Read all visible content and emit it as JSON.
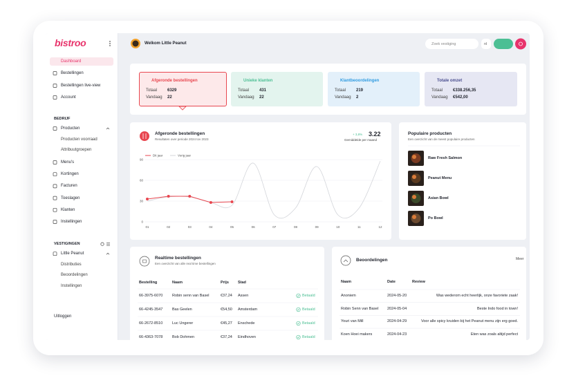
{
  "sidebar": {
    "logo": "bistroo",
    "menu": [
      "Dashboard",
      "Bestellingen",
      "Bestellingen live-view",
      "Account"
    ],
    "sections": [
      {
        "title": "BEDRIJF",
        "items": [
          {
            "label": "Producten",
            "children": [
              "Producten voorraad",
              "Attribuutgroepen"
            ]
          },
          {
            "label": "Menu's"
          },
          {
            "label": "Kortingen"
          },
          {
            "label": "Facturen"
          },
          {
            "label": "Toeslagen"
          },
          {
            "label": "Klanten"
          },
          {
            "label": "Instellingen"
          }
        ]
      },
      {
        "title": "VESTIGINGEN",
        "items": [
          {
            "label": "Little Peanut",
            "children": [
              "Distributies",
              "Beoordelingen",
              "Instellingen"
            ]
          }
        ]
      }
    ],
    "logout": "Uitloggen"
  },
  "topbar": {
    "welcome": "Welkom Little Peanut",
    "search_placeholder": "Zoek vestiging",
    "language": "nl"
  },
  "stats": [
    {
      "title": "Afgeronde bestellingen",
      "rows": [
        {
          "label": "Totaal",
          "value": "6329"
        },
        {
          "label": "Vandaag",
          "value": "22"
        }
      ]
    },
    {
      "title": "Unieke klanten",
      "rows": [
        {
          "label": "Totaal",
          "value": "431"
        },
        {
          "label": "Vandaag",
          "value": "22"
        }
      ]
    },
    {
      "title": "Klantbeoordelingen",
      "rows": [
        {
          "label": "Totaal",
          "value": "219"
        },
        {
          "label": "Vandaag",
          "value": "2"
        }
      ]
    },
    {
      "title": "Totale omzet",
      "rows": [
        {
          "label": "Totaal",
          "value": "€338.256,35"
        },
        {
          "label": "Vandaag",
          "value": "€542,00"
        }
      ]
    }
  ],
  "chart_data": {
    "type": "line",
    "title": "Afgeronde bestellingen",
    "subtitle": "Resultaten over periode 2024 tov 2023",
    "change": "+ 3,8%",
    "average": "3.22",
    "average_label": "Gemiddelde per maand",
    "categories": [
      "01",
      "02",
      "03",
      "04",
      "05",
      "06",
      "07",
      "08",
      "09",
      "10",
      "11",
      "12"
    ],
    "series": [
      {
        "name": "Dit jaar",
        "color": "#e8464f",
        "values": [
          33,
          37,
          37,
          28,
          29,
          null,
          null,
          null,
          null,
          null,
          null,
          null
        ]
      },
      {
        "name": "Vorig jaar",
        "color": "#d3d5da",
        "values": [
          30,
          36,
          36,
          28,
          24,
          85,
          10,
          20,
          80,
          10,
          20,
          88
        ]
      }
    ],
    "ylim": [
      0,
      90
    ],
    "yticks": [
      0,
      30,
      60,
      90
    ],
    "grid": true
  },
  "popular": {
    "title": "Populaire producten",
    "subtitle": "Een overzicht van de meest populaire producten",
    "items": [
      "Raw Fresh Salmon",
      "Peanut Menu",
      "Asian Bowl",
      "Po Bowl"
    ]
  },
  "realtime": {
    "title": "Realtime bestellingen",
    "subtitle": "Een overzicht van alle real time bestellingen",
    "columns": [
      "Bestelling",
      "Naam",
      "Prijs",
      "Stad"
    ],
    "rows": [
      [
        "66-3975-6070",
        "Robin senn van Basel",
        "€37,24",
        "Assen",
        "Betaald"
      ],
      [
        "66-4245-3547",
        "Bas Geelen",
        "€54,50",
        "Amsterdam",
        "Betaald"
      ],
      [
        "66-2672-8510",
        "Luc Ungerer",
        "€45,27",
        "Enschede",
        "Betaald"
      ],
      [
        "66-4363-7078",
        "Bob Dohmen",
        "€37,24",
        "Eindhoven",
        "Betaald"
      ]
    ]
  },
  "reviews": {
    "title": "Beoordelingen",
    "more": "Meer",
    "columns": [
      "Naam",
      "Date",
      "Review"
    ],
    "rows": [
      [
        "Anoniem",
        "2024-05-20",
        "Was wederom echt heerlijk, onze favoriete zaak!"
      ],
      [
        "Robin Senn van Basel",
        "2024-05-04",
        "Beste Indo food in town!"
      ],
      [
        "Youri van Mill",
        "2024-04-29",
        "Voor alle spicy kruiden bij het Peanut menu zijn erg goed."
      ],
      [
        "Koen Hoei makers",
        "2024-04-23",
        "Eten was zoals altijd perfect"
      ]
    ]
  }
}
